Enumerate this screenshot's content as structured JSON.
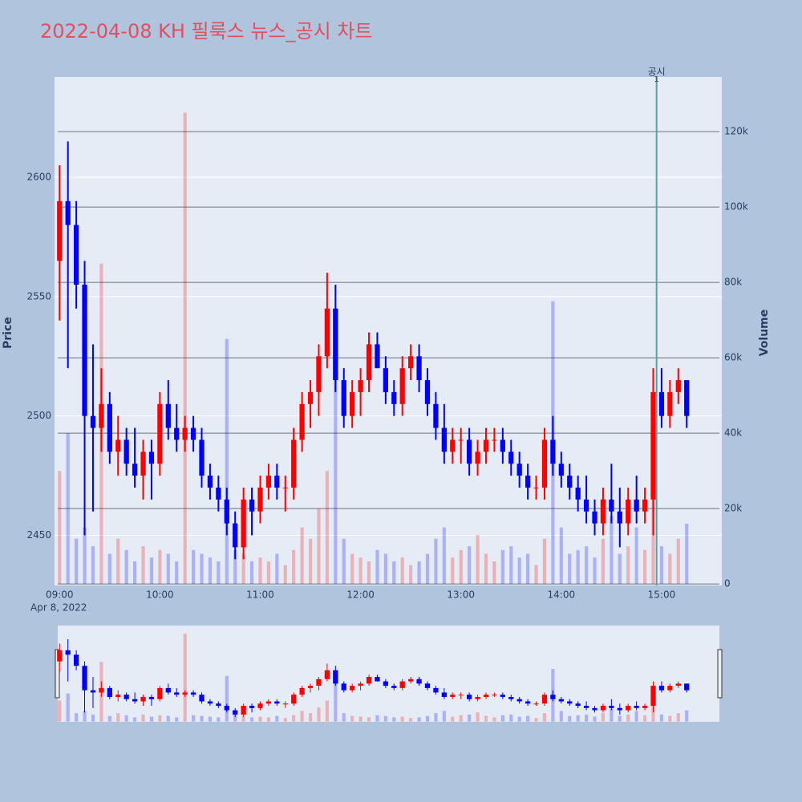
{
  "chart_data": {
    "type": "candlestick",
    "title": "2022-04-08 KH 필룩스 뉴스_공시 차트",
    "y_title": "Price",
    "y2_title": "Volume",
    "x_date_label": "Apr 8, 2022",
    "x": [
      "09:00",
      "09:05",
      "09:10",
      "09:15",
      "09:20",
      "09:25",
      "09:30",
      "09:35",
      "09:40",
      "09:45",
      "09:50",
      "09:55",
      "10:00",
      "10:05",
      "10:10",
      "10:15",
      "10:20",
      "10:25",
      "10:30",
      "10:35",
      "10:40",
      "10:45",
      "10:50",
      "10:55",
      "11:00",
      "11:05",
      "11:10",
      "11:15",
      "11:20",
      "11:25",
      "11:30",
      "11:35",
      "11:40",
      "11:45",
      "11:50",
      "11:55",
      "12:00",
      "12:05",
      "12:10",
      "12:15",
      "12:20",
      "12:25",
      "12:30",
      "12:35",
      "12:40",
      "12:45",
      "12:50",
      "12:55",
      "13:00",
      "13:05",
      "13:10",
      "13:15",
      "13:20",
      "13:25",
      "13:30",
      "13:35",
      "13:40",
      "13:45",
      "13:50",
      "13:55",
      "14:00",
      "14:05",
      "14:10",
      "14:15",
      "14:20",
      "14:25",
      "14:30",
      "14:35",
      "14:40",
      "14:45",
      "14:50",
      "14:55",
      "15:00",
      "15:05",
      "15:10",
      "15:15"
    ],
    "open": [
      2565,
      2590,
      2580,
      2555,
      2500,
      2495,
      2505,
      2485,
      2490,
      2480,
      2475,
      2485,
      2480,
      2505,
      2495,
      2490,
      2495,
      2490,
      2475,
      2470,
      2465,
      2455,
      2445,
      2465,
      2460,
      2470,
      2475,
      2470,
      2470,
      2490,
      2505,
      2510,
      2525,
      2545,
      2515,
      2500,
      2510,
      2515,
      2530,
      2520,
      2510,
      2505,
      2520,
      2525,
      2515,
      2505,
      2495,
      2485,
      2490,
      2490,
      2480,
      2485,
      2490,
      2490,
      2485,
      2480,
      2475,
      2470,
      2470,
      2490,
      2480,
      2475,
      2470,
      2465,
      2460,
      2455,
      2465,
      2460,
      2455,
      2465,
      2460,
      2465,
      2510,
      2500,
      2510,
      2515
    ],
    "high": [
      2605,
      2615,
      2590,
      2565,
      2530,
      2520,
      2510,
      2500,
      2495,
      2495,
      2490,
      2490,
      2510,
      2515,
      2505,
      2500,
      2500,
      2495,
      2480,
      2475,
      2470,
      2460,
      2470,
      2470,
      2475,
      2480,
      2480,
      2475,
      2495,
      2510,
      2515,
      2530,
      2560,
      2555,
      2520,
      2515,
      2520,
      2535,
      2535,
      2525,
      2515,
      2525,
      2530,
      2530,
      2520,
      2510,
      2505,
      2495,
      2495,
      2495,
      2490,
      2495,
      2495,
      2495,
      2490,
      2485,
      2480,
      2475,
      2495,
      2500,
      2485,
      2480,
      2475,
      2475,
      2465,
      2470,
      2480,
      2470,
      2470,
      2475,
      2470,
      2520,
      2520,
      2515,
      2520,
      2515
    ],
    "low": [
      2540,
      2520,
      2545,
      2450,
      2460,
      2485,
      2480,
      2475,
      2475,
      2470,
      2465,
      2465,
      2475,
      2490,
      2485,
      2485,
      2485,
      2470,
      2465,
      2460,
      2450,
      2440,
      2440,
      2450,
      2455,
      2465,
      2465,
      2460,
      2465,
      2485,
      2495,
      2500,
      2520,
      2510,
      2495,
      2495,
      2500,
      2510,
      2520,
      2505,
      2500,
      2500,
      2515,
      2510,
      2500,
      2490,
      2480,
      2480,
      2480,
      2475,
      2475,
      2480,
      2485,
      2480,
      2475,
      2470,
      2465,
      2465,
      2465,
      2475,
      2470,
      2465,
      2460,
      2455,
      2450,
      2450,
      2455,
      2445,
      2450,
      2455,
      2455,
      2450,
      2495,
      2495,
      2505,
      2495
    ],
    "close": [
      2590,
      2580,
      2555,
      2500,
      2495,
      2505,
      2485,
      2490,
      2480,
      2475,
      2485,
      2480,
      2505,
      2495,
      2490,
      2495,
      2490,
      2475,
      2470,
      2465,
      2455,
      2445,
      2465,
      2460,
      2470,
      2475,
      2470,
      2470,
      2490,
      2505,
      2510,
      2525,
      2545,
      2515,
      2500,
      2510,
      2515,
      2530,
      2520,
      2510,
      2505,
      2520,
      2525,
      2515,
      2505,
      2495,
      2485,
      2490,
      2490,
      2480,
      2485,
      2490,
      2490,
      2485,
      2480,
      2475,
      2470,
      2470,
      2490,
      2480,
      2475,
      2470,
      2465,
      2460,
      2455,
      2465,
      2460,
      2455,
      2465,
      2460,
      2465,
      2510,
      2500,
      2510,
      2515,
      2500
    ],
    "volume": [
      30000,
      40000,
      12000,
      15000,
      10000,
      85000,
      8000,
      12000,
      9000,
      6000,
      10000,
      7000,
      9000,
      8000,
      6000,
      125000,
      9000,
      8000,
      7000,
      6000,
      65000,
      9000,
      8000,
      6000,
      7000,
      6000,
      8000,
      5000,
      9000,
      15000,
      12000,
      20000,
      30000,
      55000,
      12000,
      8000,
      7000,
      6000,
      9000,
      8000,
      6000,
      7000,
      5000,
      6000,
      8000,
      12000,
      15000,
      7000,
      9000,
      10000,
      13000,
      8000,
      6000,
      9000,
      10000,
      7000,
      8000,
      5000,
      12000,
      75000,
      15000,
      8000,
      9000,
      10000,
      7000,
      12000,
      18000,
      8000,
      10000,
      15000,
      9000,
      25000,
      10000,
      8000,
      12000,
      16000
    ],
    "up_color": "#ff0000",
    "down_color": "#0000ff",
    "xlim": [
      "08:57",
      "15:36"
    ],
    "xticks": [
      "09:00",
      "10:00",
      "11:00",
      "12:00",
      "13:00",
      "14:00",
      "15:00"
    ],
    "ylim": [
      2429,
      2642
    ],
    "yticks": [
      2450,
      2500,
      2550,
      2600
    ],
    "y2lim": [
      -400,
      134500
    ],
    "y2ticks": [
      0,
      {
        "value": 20000,
        "label": "20k"
      },
      {
        "value": 40000,
        "label": "40k"
      },
      {
        "value": 60000,
        "label": "60k"
      },
      {
        "value": 80000,
        "label": "80k"
      },
      {
        "value": 100000,
        "label": "100k"
      },
      {
        "value": 120000,
        "label": "120k"
      }
    ],
    "annotation": {
      "x": "14:57",
      "text": "공시",
      "label": "1",
      "color": "#5f9ea0"
    }
  }
}
